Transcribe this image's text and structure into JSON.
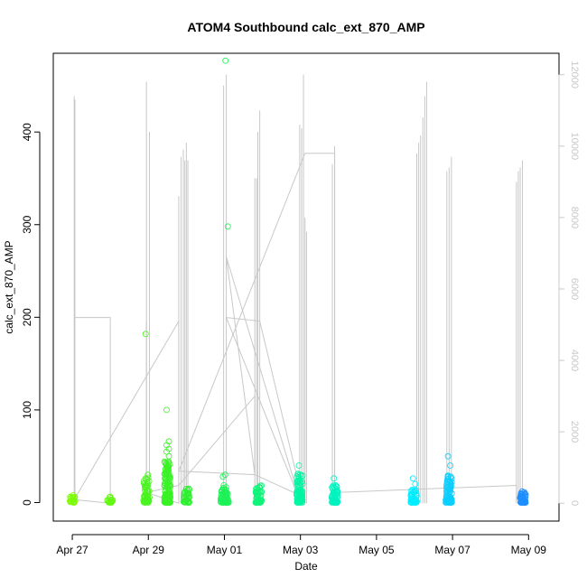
{
  "chart_data": {
    "type": "scatter",
    "title": "ATOM4 Southbound calc_ext_870_AMP",
    "xlabel": "Date",
    "ylabel": "calc_ext_870_AMP",
    "x_ticks": [
      "Apr 27",
      "Apr 29",
      "May 01",
      "May 03",
      "May 05",
      "May 07",
      "May 09"
    ],
    "y_ticks": [
      0,
      100,
      200,
      300,
      400
    ],
    "y2_ticks": [
      0,
      2000,
      4000,
      6000,
      8000,
      10000,
      12000
    ],
    "xlim_days": [
      -0.5,
      12.8
    ],
    "ylim": [
      -20,
      485
    ],
    "y2lim": [
      -500,
      12600
    ],
    "colors": {
      "secondary_line": "#c8c8c8",
      "gradient": [
        "#7CFC00",
        "#2EF02E",
        "#00F5A0",
        "#00F0FF",
        "#1E8FFF"
      ]
    },
    "secondary_series": {
      "name": "",
      "spikes": [
        {
          "x": 0.05,
          "top": 11400
        },
        {
          "x": 0.07,
          "top": 11300
        },
        {
          "x": 1.95,
          "top": 11800
        },
        {
          "x": 2.03,
          "top": 10400
        },
        {
          "x": 2.8,
          "top": 8600
        },
        {
          "x": 2.86,
          "top": 9700
        },
        {
          "x": 2.92,
          "top": 9900
        },
        {
          "x": 2.96,
          "top": 9600
        },
        {
          "x": 3.0,
          "top": 10100
        },
        {
          "x": 3.04,
          "top": 9600
        },
        {
          "x": 1.95,
          "top": 5100
        },
        {
          "x": 3.98,
          "top": 11700
        },
        {
          "x": 4.05,
          "top": 12000
        },
        {
          "x": 4.8,
          "top": 9100
        },
        {
          "x": 4.85,
          "top": 9100
        },
        {
          "x": 4.88,
          "top": 10400
        },
        {
          "x": 4.93,
          "top": 11000
        },
        {
          "x": 5.98,
          "top": 10600
        },
        {
          "x": 6.03,
          "top": 10500
        },
        {
          "x": 6.08,
          "top": 12000
        },
        {
          "x": 6.12,
          "top": 8000
        },
        {
          "x": 6.16,
          "top": 7600
        },
        {
          "x": 6.84,
          "top": 9500
        },
        {
          "x": 6.9,
          "top": 10000
        },
        {
          "x": 9.06,
          "top": 9800
        },
        {
          "x": 9.11,
          "top": 10100
        },
        {
          "x": 9.16,
          "top": 10300
        },
        {
          "x": 9.22,
          "top": 10800
        },
        {
          "x": 9.27,
          "top": 11400
        },
        {
          "x": 9.32,
          "top": 11800
        },
        {
          "x": 9.85,
          "top": 9300
        },
        {
          "x": 9.91,
          "top": 9400
        },
        {
          "x": 9.97,
          "top": 9700
        },
        {
          "x": 11.68,
          "top": 9000
        },
        {
          "x": 11.73,
          "top": 9300
        },
        {
          "x": 11.78,
          "top": 9400
        },
        {
          "x": 11.84,
          "top": 9600
        }
      ],
      "path": [
        [
          0.05,
          5200
        ],
        [
          1.0,
          5200
        ],
        [
          1.0,
          0
        ],
        [
          0.05,
          100
        ],
        [
          2.8,
          5100
        ],
        [
          2.8,
          0
        ],
        [
          1.95,
          300
        ],
        [
          2.8,
          500
        ],
        [
          4.8,
          3000
        ],
        [
          4.8,
          800
        ],
        [
          4.05,
          6900
        ],
        [
          5.98,
          100
        ],
        [
          4.05,
          5200
        ],
        [
          4.93,
          5100
        ],
        [
          6.03,
          200
        ],
        [
          4.8,
          800
        ],
        [
          2.8,
          900
        ],
        [
          6.12,
          9800
        ],
        [
          6.9,
          9800
        ],
        [
          6.9,
          300
        ],
        [
          11.68,
          500
        ],
        [
          11.68,
          0
        ]
      ]
    },
    "clusters": [
      {
        "x": 0.0,
        "n": 26,
        "max": 8,
        "extra": []
      },
      {
        "x": 1.0,
        "n": 20,
        "max": 7,
        "extra": []
      },
      {
        "x": 1.95,
        "n": 60,
        "max": 27,
        "extra": [
          182,
          30
        ]
      },
      {
        "x": 2.5,
        "n": 160,
        "max": 45,
        "extra": [
          100,
          66,
          62,
          58,
          55,
          50
        ]
      },
      {
        "x": 3.0,
        "n": 40,
        "max": 15,
        "extra": []
      },
      {
        "x": 3.98,
        "n": 60,
        "max": 20,
        "extra": [
          28,
          30
        ]
      },
      {
        "x": 4.05,
        "n": 30,
        "max": 12,
        "extra": [
          477,
          298
        ]
      },
      {
        "x": 4.9,
        "n": 60,
        "max": 20,
        "extra": []
      },
      {
        "x": 5.98,
        "n": 90,
        "max": 33,
        "extra": [
          40
        ]
      },
      {
        "x": 6.9,
        "n": 70,
        "max": 20,
        "extra": [
          26
        ]
      },
      {
        "x": 8.98,
        "n": 60,
        "max": 14,
        "extra": [
          26,
          20
        ]
      },
      {
        "x": 9.9,
        "n": 90,
        "max": 35,
        "extra": [
          50,
          40
        ]
      },
      {
        "x": 11.85,
        "n": 60,
        "max": 10,
        "extra": [
          12,
          11
        ]
      }
    ]
  }
}
